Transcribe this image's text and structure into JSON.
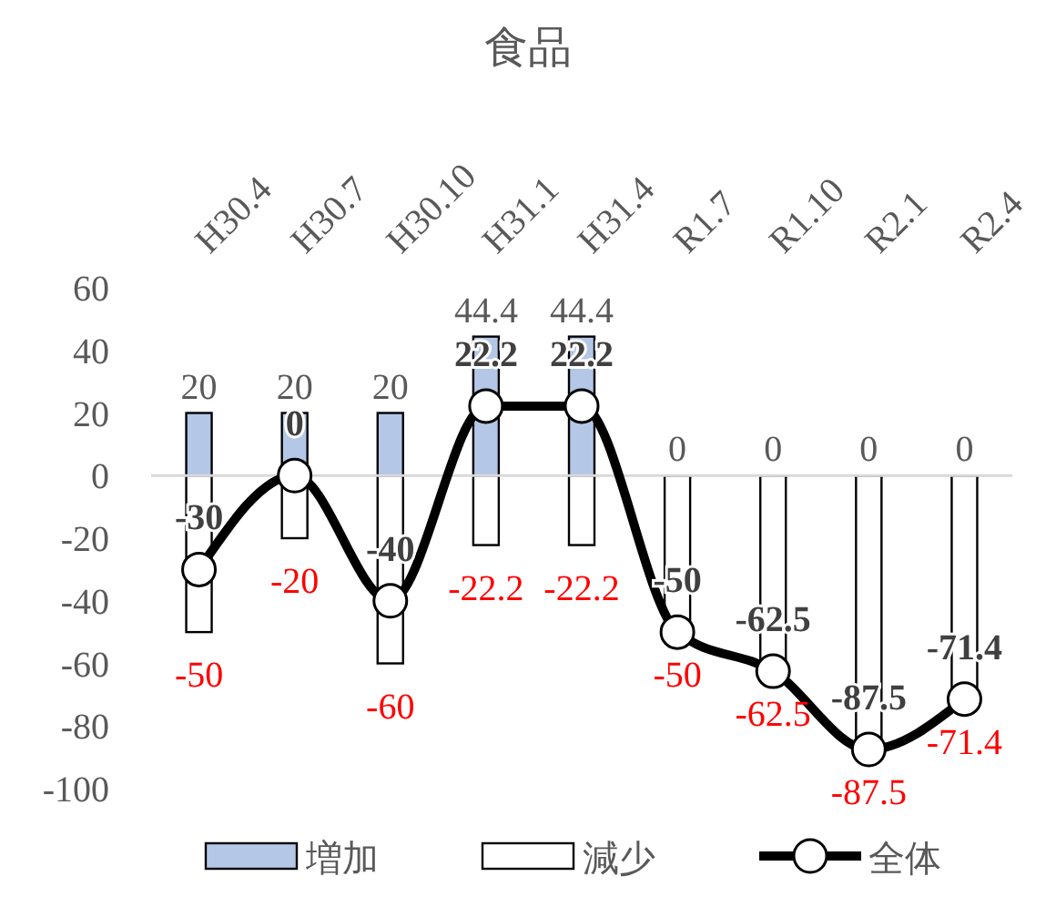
{
  "chart_data": {
    "type": "bar",
    "title": "食品",
    "categories": [
      "H30.4",
      "H30.7",
      "H30.10",
      "H31.1",
      "H31.4",
      "R1.7",
      "R1.10",
      "R2.1",
      "R2.4"
    ],
    "series": [
      {
        "name": "増加",
        "color": "#b4c7e7",
        "values": [
          20,
          20,
          20,
          44.4,
          44.4,
          0,
          0,
          0,
          0
        ]
      },
      {
        "name": "減少",
        "color": "#ffffff",
        "values": [
          -50,
          -20,
          -60,
          -22.2,
          -22.2,
          -50,
          -62.5,
          -87.5,
          -71.4
        ]
      },
      {
        "name": "全体",
        "type": "line",
        "color": "#000000",
        "marker": "circle",
        "values": [
          -30,
          0,
          -40,
          22.2,
          22.2,
          -50,
          -62.5,
          -87.5,
          -71.4
        ]
      }
    ],
    "ylim": [
      -100,
      60
    ],
    "yticks": [
      -100,
      -80,
      -60,
      -40,
      -20,
      0,
      20,
      40,
      60
    ],
    "stacked": true,
    "legend": "bottom",
    "data_labels": true
  }
}
